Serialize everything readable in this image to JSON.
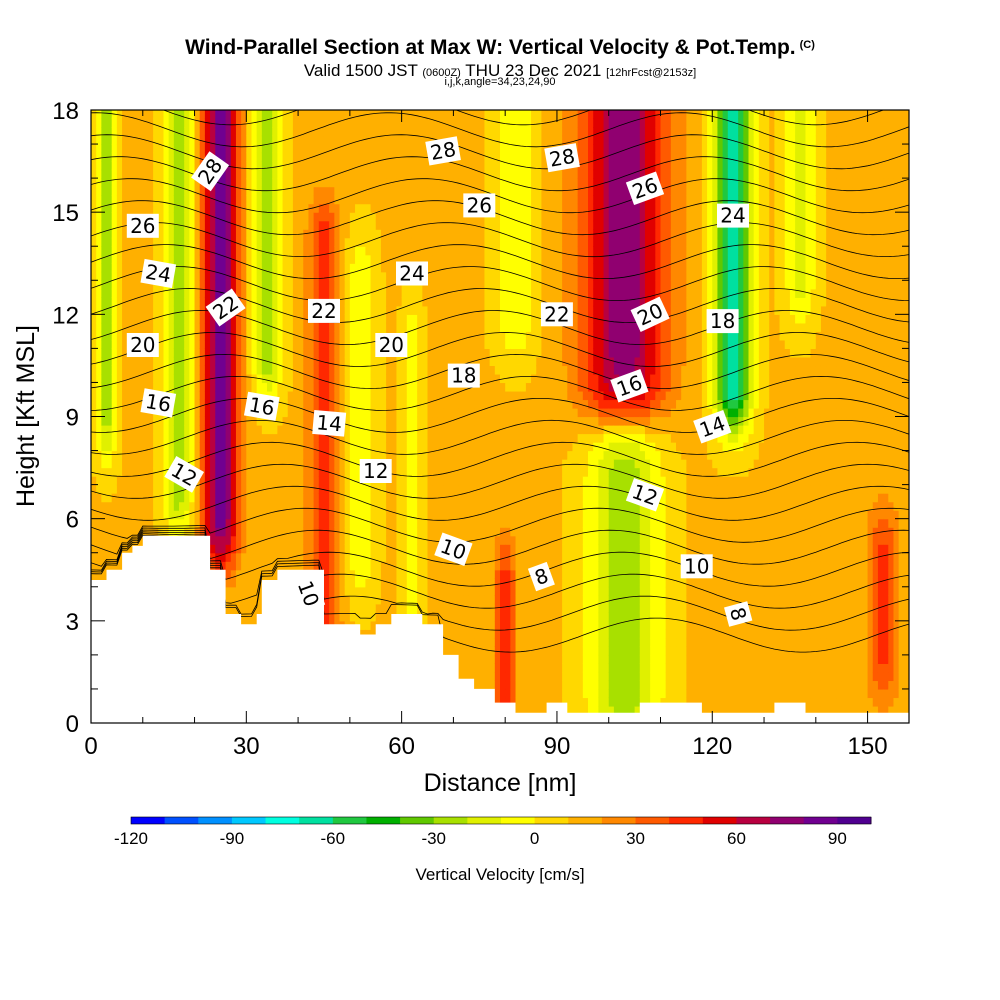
{
  "header": {
    "title": "Wind-Parallel Section at Max W: Vertical Velocity & Pot.Temp.",
    "copyright": "(C)",
    "valid_prefix": "Valid 1500 JST",
    "valid_utc": "(0600Z)",
    "valid_date": "THU 23 Dec 2021",
    "forecast": "[12hrFcst@2153z]",
    "indices": "i,j,k,angle=34,23,24,90"
  },
  "chart_data": {
    "type": "heatmap",
    "title": "Wind-Parallel Section at Max W: Vertical Velocity & Pot.Temp.",
    "xlabel": "Distance [nm]",
    "ylabel": "Height [Kft MSL]",
    "xlim": [
      0,
      158
    ],
    "ylim": [
      0,
      18
    ],
    "x_ticks": [
      "0",
      "30",
      "60",
      "90",
      "120",
      "150"
    ],
    "y_ticks": [
      "0",
      "3",
      "6",
      "9",
      "12",
      "15",
      "18"
    ],
    "x_tick_values": [
      0,
      30,
      60,
      90,
      120,
      150
    ],
    "y_tick_values": [
      0,
      3,
      6,
      9,
      12,
      15,
      18
    ],
    "colorbar": {
      "label": "Vertical Velocity [cm/s]",
      "tick_labels": [
        "-120",
        "-90",
        "-60",
        "-30",
        "0",
        "30",
        "60",
        "90"
      ],
      "tick_values": [
        -120,
        -90,
        -60,
        -30,
        0,
        30,
        60,
        90
      ],
      "range": [
        -120,
        100
      ],
      "colors": [
        "#0000ff",
        "#0050ff",
        "#0090ff",
        "#00c8ff",
        "#00ffe0",
        "#00e0a0",
        "#20c840",
        "#00b000",
        "#60c800",
        "#a8e000",
        "#e0f000",
        "#ffff00",
        "#ffd800",
        "#ffb000",
        "#ff8800",
        "#ff5a00",
        "#ff2800",
        "#e00000",
        "#b80040",
        "#900070",
        "#700090",
        "#500090"
      ]
    },
    "terrain_profile": {
      "x": [
        0,
        3,
        3,
        6,
        6,
        8,
        8,
        10,
        10,
        23,
        23,
        26,
        26,
        29,
        29,
        32,
        32,
        33,
        33,
        36,
        36,
        45,
        45,
        52,
        52,
        55,
        55,
        58,
        58,
        64,
        64,
        68,
        68,
        71,
        71,
        74,
        74,
        78,
        78,
        82,
        82,
        88,
        88,
        92,
        92,
        106,
        106,
        118,
        118,
        132,
        132,
        138,
        138,
        158
      ],
      "y": [
        4.2,
        4.2,
        4.5,
        4.5,
        5.0,
        5.0,
        5.2,
        5.2,
        5.5,
        5.5,
        4.5,
        4.5,
        3.2,
        3.2,
        2.9,
        2.9,
        3.2,
        3.2,
        4.2,
        4.2,
        4.5,
        4.5,
        2.9,
        2.9,
        2.6,
        2.6,
        2.9,
        2.9,
        3.2,
        3.2,
        2.9,
        2.9,
        2.0,
        2.0,
        1.3,
        1.3,
        1.0,
        1.0,
        0.6,
        0.6,
        0.3,
        0.3,
        0.6,
        0.6,
        0.3,
        0.3,
        0.6,
        0.6,
        0.3,
        0.3,
        0.6,
        0.6,
        0.3,
        0.3
      ]
    },
    "vertical_velocity_features": [
      {
        "x": 3,
        "zmin": 9,
        "zmax": 18,
        "w": -35,
        "halfwidth": 2
      },
      {
        "x": 17,
        "zmin": 7,
        "zmax": 18,
        "w": -40,
        "halfwidth": 3
      },
      {
        "x": 25,
        "zmin": 6,
        "zmax": 18,
        "w": 70,
        "halfwidth": 3.5
      },
      {
        "x": 34,
        "zmin": 11,
        "zmax": 18,
        "w": -40,
        "halfwidth": 3
      },
      {
        "x": 45,
        "zmin": 3,
        "zmax": 14,
        "w": 35,
        "halfwidth": 3
      },
      {
        "x": 52,
        "zmin": 5,
        "zmax": 13,
        "w": -20,
        "halfwidth": 3
      },
      {
        "x": 62,
        "zmin": 4,
        "zmax": 11,
        "w": -20,
        "halfwidth": 2
      },
      {
        "x": 80,
        "zmin": 1,
        "zmax": 4,
        "w": 35,
        "halfwidth": 2
      },
      {
        "x": 82,
        "zmin": 12,
        "zmax": 18,
        "w": -20,
        "halfwidth": 4
      },
      {
        "x": 103,
        "zmin": 10,
        "zmax": 18,
        "w": 65,
        "halfwidth": 8
      },
      {
        "x": 103,
        "zmin": 1,
        "zmax": 8,
        "w": -40,
        "halfwidth": 7
      },
      {
        "x": 124,
        "zmin": 10,
        "zmax": 18,
        "w": -80,
        "halfwidth": 3.5
      },
      {
        "x": 137,
        "zmin": 13,
        "zmax": 18,
        "w": -25,
        "halfwidth": 3
      },
      {
        "x": 153,
        "zmin": 2,
        "zmax": 5,
        "w": 30,
        "halfwidth": 3
      }
    ],
    "theta_contour_labels": [
      {
        "text": "28",
        "x": 23,
        "y": 16.2,
        "angle": -55
      },
      {
        "text": "26",
        "x": 10,
        "y": 14.6,
        "angle": 0
      },
      {
        "text": "24",
        "x": 13,
        "y": 13.2,
        "angle": 10
      },
      {
        "text": "22",
        "x": 26,
        "y": 12.2,
        "angle": -35
      },
      {
        "text": "20",
        "x": 10,
        "y": 11.1,
        "angle": 0
      },
      {
        "text": "16",
        "x": 13,
        "y": 9.4,
        "angle": 10
      },
      {
        "text": "16",
        "x": 33,
        "y": 9.3,
        "angle": 10
      },
      {
        "text": "12",
        "x": 18,
        "y": 7.3,
        "angle": 30
      },
      {
        "text": "22",
        "x": 45,
        "y": 12.1,
        "angle": 0
      },
      {
        "text": "14",
        "x": 46,
        "y": 8.8,
        "angle": 5
      },
      {
        "text": "10",
        "x": 42,
        "y": 3.8,
        "angle": 70
      },
      {
        "text": "28",
        "x": 68,
        "y": 16.8,
        "angle": -10
      },
      {
        "text": "26",
        "x": 75,
        "y": 15.2,
        "angle": 0
      },
      {
        "text": "24",
        "x": 62,
        "y": 13.2,
        "angle": 0
      },
      {
        "text": "20",
        "x": 58,
        "y": 11.1,
        "angle": 0
      },
      {
        "text": "18",
        "x": 72,
        "y": 10.2,
        "angle": 0
      },
      {
        "text": "12",
        "x": 55,
        "y": 7.4,
        "angle": 0
      },
      {
        "text": "10",
        "x": 70,
        "y": 5.1,
        "angle": 20
      },
      {
        "text": "28",
        "x": 91,
        "y": 16.6,
        "angle": -10
      },
      {
        "text": "26",
        "x": 107,
        "y": 15.7,
        "angle": -20
      },
      {
        "text": "24",
        "x": 124,
        "y": 14.9,
        "angle": 0
      },
      {
        "text": "22",
        "x": 90,
        "y": 12.0,
        "angle": 0
      },
      {
        "text": "20",
        "x": 108,
        "y": 12.0,
        "angle": -25
      },
      {
        "text": "18",
        "x": 122,
        "y": 11.8,
        "angle": 0
      },
      {
        "text": "16",
        "x": 104,
        "y": 9.9,
        "angle": -20
      },
      {
        "text": "14",
        "x": 120,
        "y": 8.7,
        "angle": -20
      },
      {
        "text": "12",
        "x": 107,
        "y": 6.7,
        "angle": 20
      },
      {
        "text": "8",
        "x": 87,
        "y": 4.3,
        "angle": -20
      },
      {
        "text": "10",
        "x": 117,
        "y": 4.6,
        "angle": 0
      },
      {
        "text": "8",
        "x": 125,
        "y": 3.2,
        "angle": 75
      }
    ]
  }
}
